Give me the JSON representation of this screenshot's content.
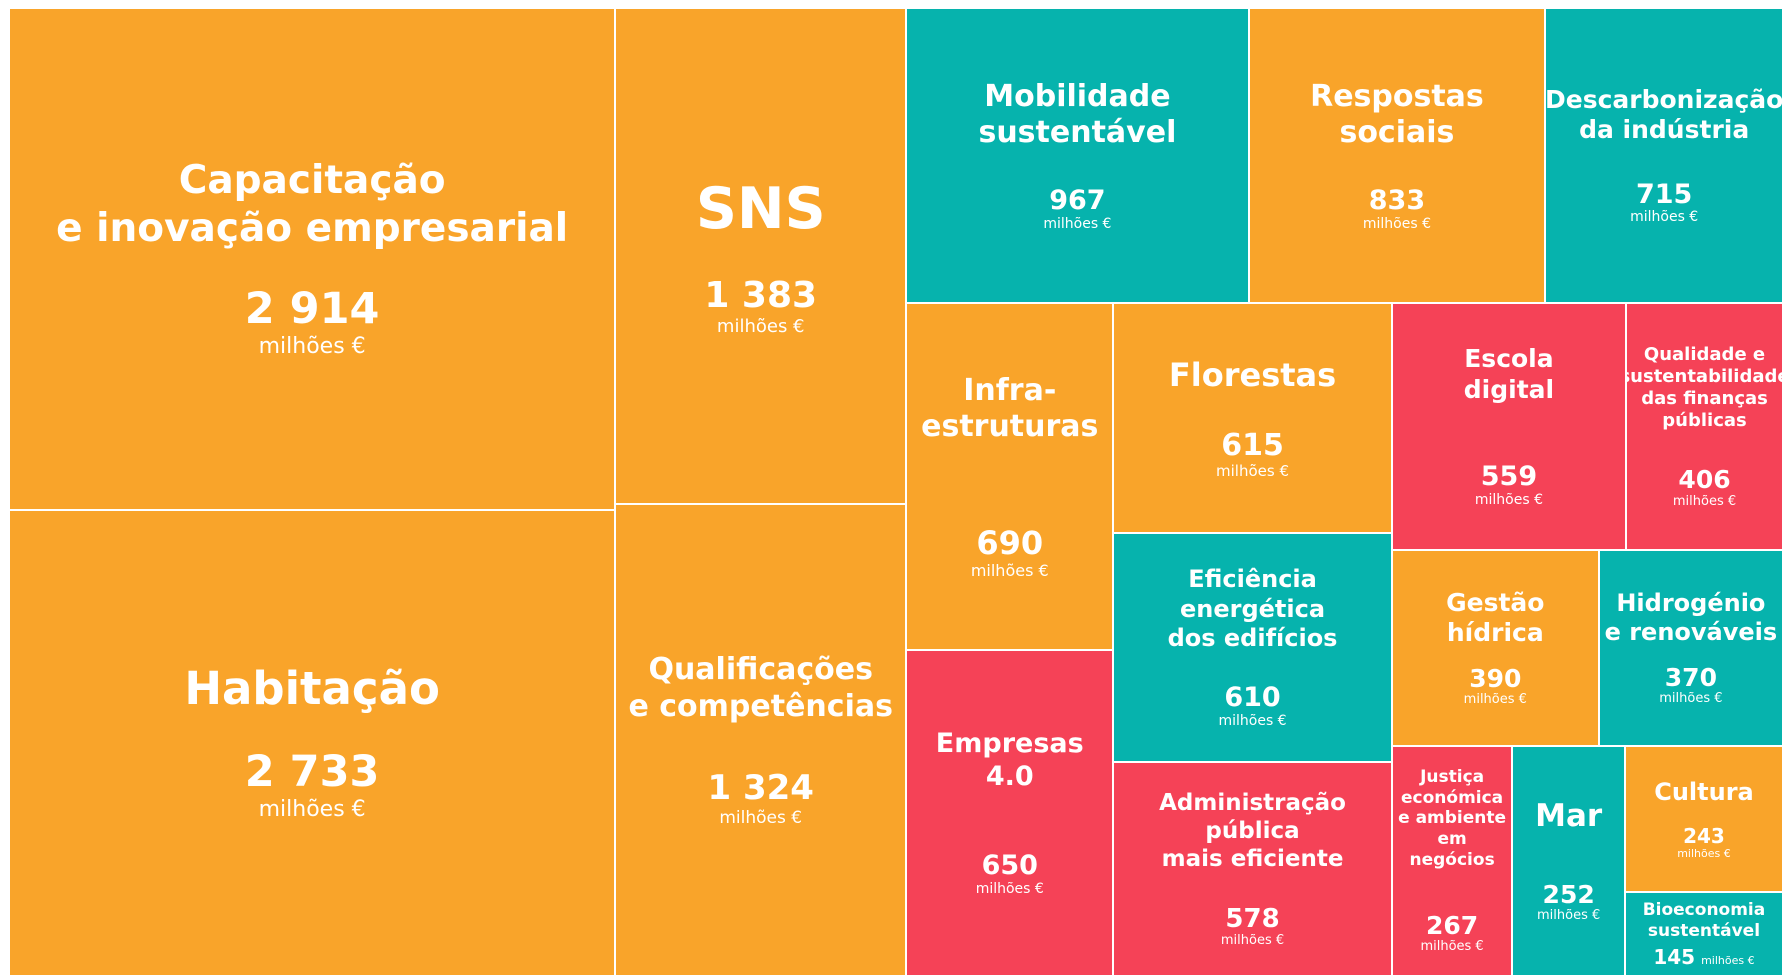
{
  "chart_data": {
    "type": "treemap",
    "unit": "milhões €",
    "categories": [
      "Capacitação\ne inovação empresarial",
      "Habitação",
      "SNS",
      "Qualificações\ne competências",
      "Mobilidade\nsustentável",
      "Respostas\nsociais",
      "Descarbonização\nda indústria",
      "Infra-\nestruturas",
      "Empresas\n4.0",
      "Florestas",
      "Eficiência\nenergética\ndos edifícios",
      "Administração\npública\nmais eficiente",
      "Escola\ndigital",
      "Qualidade e\nsustentabilidade\ndas finanças\npúblicas",
      "Gestão\nhídrica",
      "Hidrogénio\ne renováveis",
      "Justiça\neconómica\ne ambiente\nem negócios",
      "Mar",
      "Cultura",
      "Bioeconomia\nsustentável"
    ],
    "values": [
      2914,
      2733,
      1383,
      1324,
      967,
      833,
      715,
      690,
      650,
      615,
      610,
      578,
      559,
      406,
      390,
      370,
      267,
      252,
      243,
      145
    ],
    "value_labels": [
      "2 914",
      "2 733",
      "1 383",
      "1 324",
      "967",
      "833",
      "715",
      "690",
      "650",
      "615",
      "610",
      "578",
      "559",
      "406",
      "390",
      "370",
      "267",
      "252",
      "243",
      "145"
    ],
    "colors": [
      "#f9a42a",
      "#f9a42a",
      "#f9a42a",
      "#f9a42a",
      "#06b3ad",
      "#f9a42a",
      "#06b3ad",
      "#f9a42a",
      "#f54257",
      "#f9a42a",
      "#06b3ad",
      "#f54257",
      "#f54257",
      "#f54257",
      "#f9a42a",
      "#06b3ad",
      "#f54257",
      "#06b3ad",
      "#f9a42a",
      "#06b3ad"
    ]
  }
}
